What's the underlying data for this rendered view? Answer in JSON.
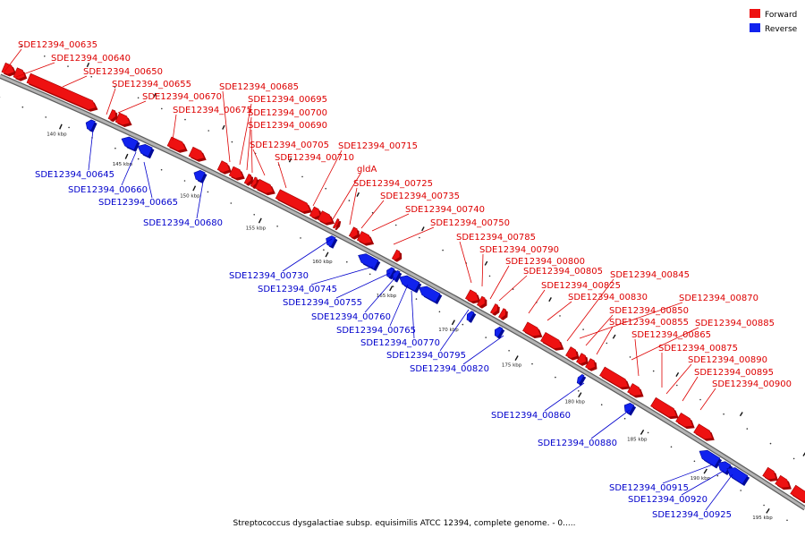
{
  "legend": {
    "forward": {
      "label": "Forward",
      "color": "#ee1111"
    },
    "reverse": {
      "label": "Reverse",
      "color": "#1122ee"
    }
  },
  "caption": "Streptococcus dysgalactiae subsp. equisimilis ATCC 12394, complete genome. - 0.....",
  "colors": {
    "forward": "#ee1111",
    "forward_dark": "#a40000",
    "reverse": "#1122ee",
    "reverse_dark": "#000a99",
    "backbone": "#808080",
    "label_forward": "#dd0000",
    "label_reverse": "#0000cc"
  },
  "ticks": [
    {
      "label": "140 kbp"
    },
    {
      "label": "145 kbp"
    },
    {
      "label": "150 kbp"
    },
    {
      "label": "155 kbp"
    },
    {
      "label": "160 kbp"
    },
    {
      "label": "165 kbp"
    },
    {
      "label": "170 kbp"
    },
    {
      "label": "175 kbp"
    },
    {
      "label": "180 kbp"
    },
    {
      "label": "185 kbp"
    },
    {
      "label": "190 kbp"
    },
    {
      "label": "195 kbp"
    }
  ],
  "forward_genes": [
    "SDE12394_00635",
    "SDE12394_00640",
    "SDE12394_00650",
    "SDE12394_00655",
    "SDE12394_00670",
    "SDE12394_00675",
    "SDE12394_00685",
    "SDE12394_00695",
    "SDE12394_00700",
    "SDE12394_00690",
    "SDE12394_00705",
    "SDE12394_00710",
    "SDE12394_00715",
    "gldA",
    "SDE12394_00725",
    "SDE12394_00735",
    "SDE12394_00740",
    "SDE12394_00750",
    "SDE12394_00785",
    "SDE12394_00790",
    "SDE12394_00800",
    "SDE12394_00805",
    "SDE12394_00825",
    "SDE12394_00830",
    "SDE12394_00845",
    "SDE12394_00870",
    "SDE12394_00850",
    "SDE12394_00855",
    "SDE12394_00885",
    "SDE12394_00865",
    "SDE12394_00875",
    "SDE12394_00890",
    "SDE12394_00895",
    "SDE12394_00900"
  ],
  "reverse_genes": [
    "SDE12394_00645",
    "SDE12394_00660",
    "SDE12394_00665",
    "SDE12394_00680",
    "SDE12394_00730",
    "SDE12394_00745",
    "SDE12394_00755",
    "SDE12394_00760",
    "SDE12394_00765",
    "SDE12394_00770",
    "SDE12394_00795",
    "SDE12394_00820",
    "SDE12394_00860",
    "SDE12394_00880",
    "SDE12394_00915",
    "SDE12394_00920",
    "SDE12394_00925"
  ]
}
